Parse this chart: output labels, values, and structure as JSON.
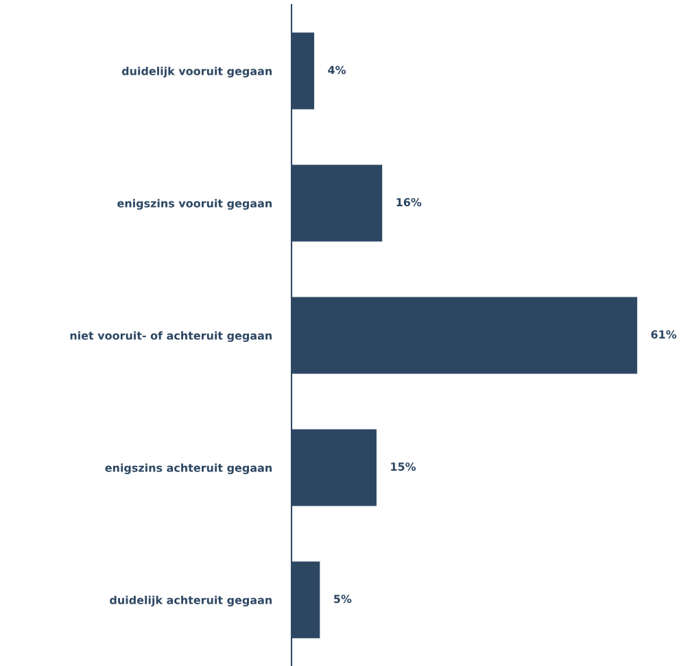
{
  "chart_data": {
    "type": "bar",
    "orientation": "horizontal",
    "categories": [
      "duidelijk vooruit gegaan",
      "enigszins vooruit gegaan",
      "niet vooruit- of achteruit gegaan",
      "enigszins achteruit gegaan",
      "duidelijk achteruit gegaan"
    ],
    "values": [
      4,
      16,
      61,
      15,
      5
    ],
    "value_labels": [
      "4%",
      "16%",
      "61%",
      "15%",
      "5%"
    ],
    "color": "#2d4763",
    "grid": false,
    "legend": false
  }
}
